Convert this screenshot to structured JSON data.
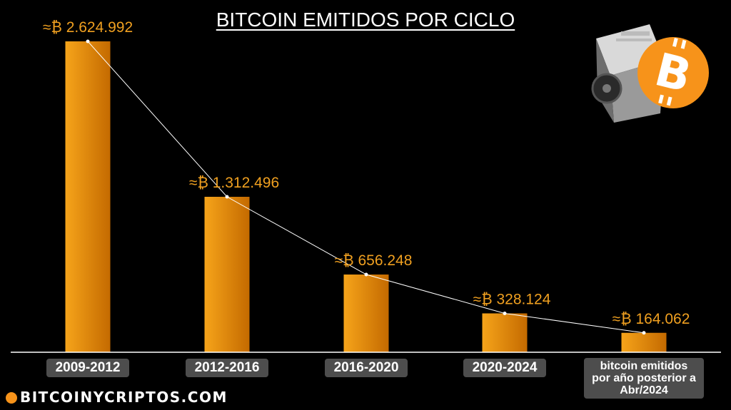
{
  "title": "BITCOIN EMITIDOS POR CICLO",
  "brand": "BITCOINYCRIPTOS.COM",
  "colors": {
    "bar_light": "#f6a41a",
    "bar_dark": "#c46a00",
    "label": "#f0a020",
    "line": "#ffffff",
    "axis": "#ffffff",
    "background": "#000000"
  },
  "chart_data": {
    "type": "bar",
    "categories": [
      "2009-2012",
      "2012-2016",
      "2016-2020",
      "2020-2024",
      "bitcoin emitidos por año posterior a Abr/2024"
    ],
    "category_lines": [
      [
        "2009-2012"
      ],
      [
        "2012-2016"
      ],
      [
        "2016-2020"
      ],
      [
        "2020-2024"
      ],
      [
        "bitcoin emitidos",
        "por año posterior a",
        "Abr/2024"
      ]
    ],
    "values": [
      2624992,
      1312496,
      656248,
      328124,
      164062
    ],
    "data_labels": [
      "≈₿ 2.624.992",
      "≈₿ 1.312.496",
      "≈₿ 656.248",
      "≈₿ 328.124",
      "≈₿ 164.062"
    ],
    "title": "BITCOIN EMITIDOS POR CICLO",
    "xlabel": "",
    "ylabel": "",
    "ylim": [
      0,
      2624992
    ],
    "grid": false,
    "legend": "none",
    "trend_line": true
  },
  "icons": {
    "logo": "bitcoin-logo-icon",
    "miner": "asic-miner-icon",
    "brand": "bitcoin-coin-icon"
  }
}
